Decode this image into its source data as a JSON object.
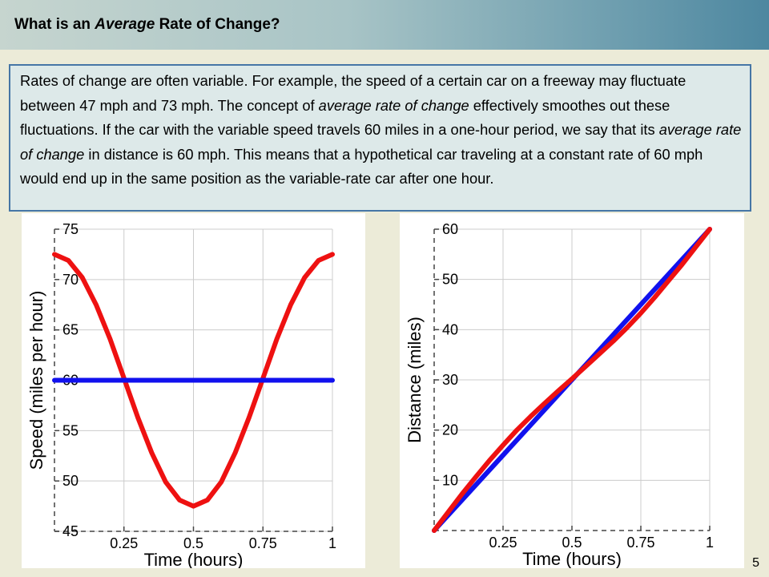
{
  "slide": {
    "title_prefix": "What is an ",
    "title_emph": "Average",
    "title_suffix": " Rate of Change?",
    "paragraph": [
      {
        "t": "Rates of change are often variable. For example, the speed of a certain car on a freeway may fluctuate between 47 mph and 73 mph. The concept of ",
        "i": false
      },
      {
        "t": "average rate of change",
        "i": true
      },
      {
        "t": " effectively smoothes out these fluctuations. If the car with the variable speed travels 60 miles in a one-hour period, we say that its ",
        "i": false
      },
      {
        "t": "average rate of change",
        "i": true
      },
      {
        "t": " in distance is 60 mph. This means that a hypothetical car traveling at a constant rate of 60 mph would end up in the same position as the variable-rate car after one hour.",
        "i": false
      }
    ],
    "page_number": "5"
  },
  "colors": {
    "red_series": "#ee1111",
    "blue_series": "#1111ee",
    "grid": "#cccccc"
  },
  "chart_data": [
    {
      "type": "line",
      "xlabel": "Time (hours)",
      "ylabel": "Speed (miles per hour)",
      "xlim": [
        0,
        1
      ],
      "ylim": [
        45,
        75
      ],
      "xticks": [
        0.25,
        0.5,
        0.75,
        1
      ],
      "xtick_labels": [
        "0.25",
        "0.5",
        "0.75",
        "1"
      ],
      "yticks": [
        45,
        50,
        55,
        60,
        65,
        70,
        75
      ],
      "ytick_labels": [
        "45",
        "50",
        "55",
        "60",
        "65",
        "70",
        "75"
      ],
      "grid": true,
      "series": [
        {
          "color": "red",
          "x": [
            0,
            0.05,
            0.1,
            0.15,
            0.2,
            0.25,
            0.3,
            0.35,
            0.4,
            0.45,
            0.5,
            0.55,
            0.6,
            0.65,
            0.7,
            0.75,
            0.8,
            0.85,
            0.9,
            0.95,
            1
          ],
          "y": [
            72.5,
            71.9,
            70.2,
            67.5,
            64.1,
            60.2,
            56.3,
            52.8,
            49.9,
            48.1,
            47.5,
            48.1,
            49.9,
            52.8,
            56.3,
            60.2,
            64.1,
            67.5,
            70.2,
            71.9,
            72.5
          ]
        },
        {
          "color": "blue",
          "x": [
            0,
            1
          ],
          "y": [
            60,
            60
          ]
        }
      ]
    },
    {
      "type": "line",
      "xlabel": "Time (hours)",
      "ylabel": "Distance (miles)",
      "xlim": [
        0,
        1
      ],
      "ylim": [
        0,
        60
      ],
      "xticks": [
        0.25,
        0.5,
        0.75,
        1
      ],
      "xtick_labels": [
        "0.25",
        "0.5",
        "0.75",
        "1"
      ],
      "yticks": [
        10,
        20,
        30,
        40,
        50,
        60
      ],
      "ytick_labels": [
        "10",
        "20",
        "30",
        "40",
        "50",
        "60"
      ],
      "grid": true,
      "series": [
        {
          "color": "blue",
          "x": [
            0,
            1
          ],
          "y": [
            0,
            60
          ]
        },
        {
          "color": "red",
          "x": [
            0,
            0.05,
            0.1,
            0.15,
            0.2,
            0.25,
            0.3,
            0.35,
            0.4,
            0.45,
            0.5,
            0.55,
            0.6,
            0.65,
            0.7,
            0.75,
            0.8,
            0.85,
            0.9,
            0.95,
            1
          ],
          "y": [
            0,
            3.6,
            7.2,
            10.6,
            13.9,
            17.0,
            20.0,
            22.7,
            25.3,
            27.8,
            30.2,
            32.7,
            35.2,
            37.7,
            40.4,
            43.3,
            46.4,
            49.7,
            53.0,
            56.5,
            60
          ]
        }
      ]
    }
  ]
}
